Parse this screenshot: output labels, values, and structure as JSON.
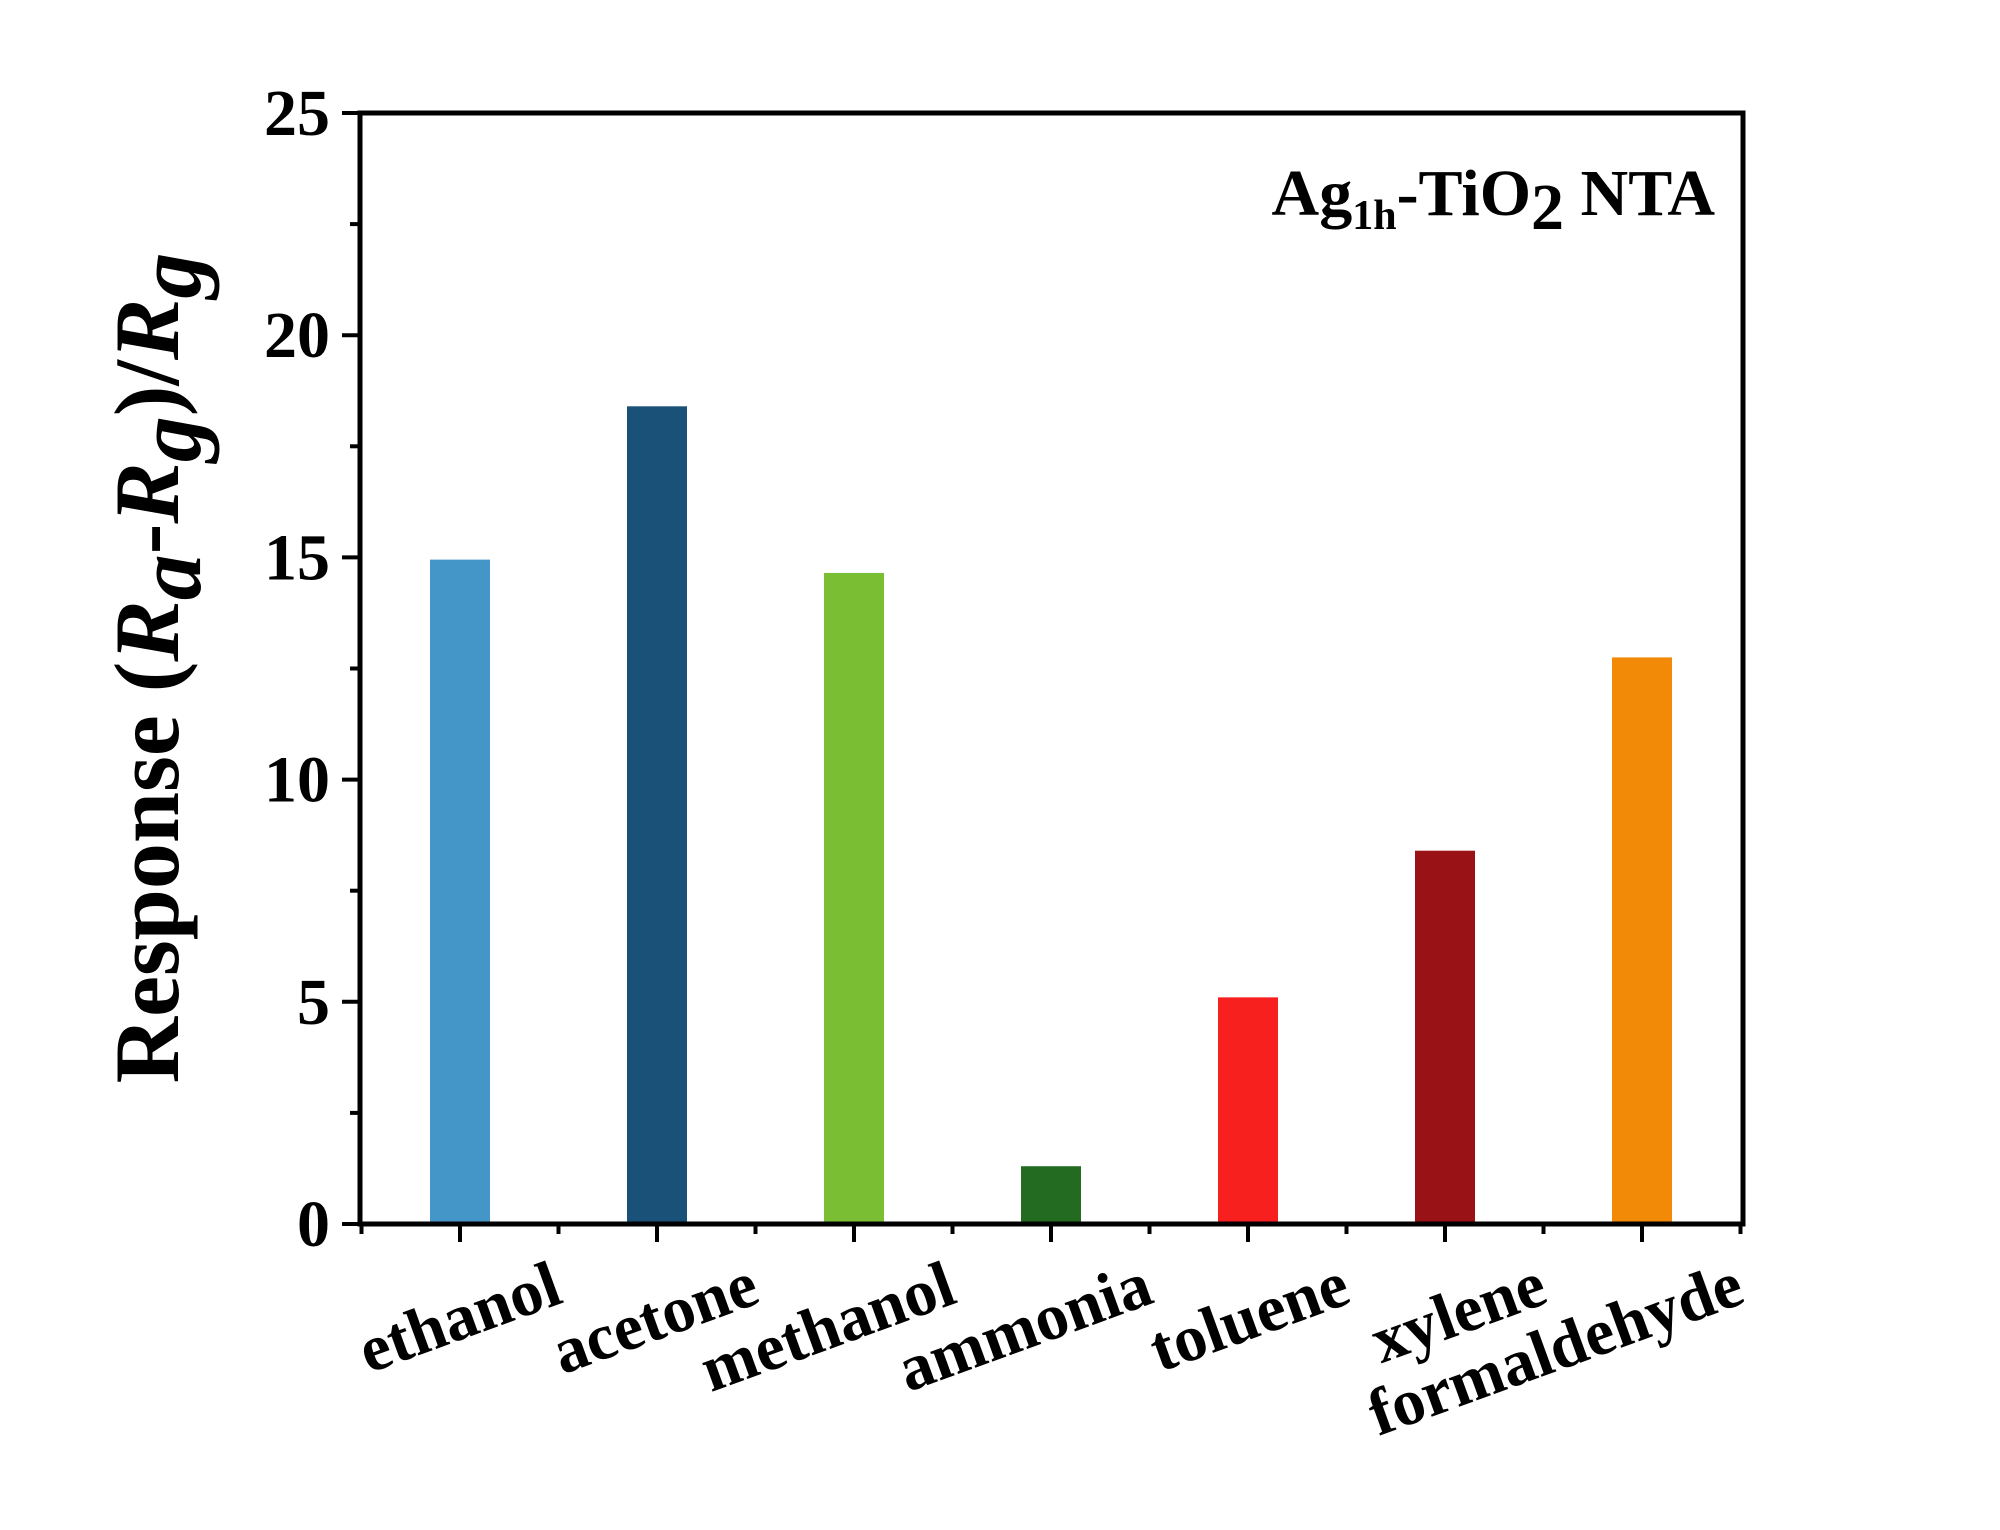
{
  "chart_data": {
    "type": "bar",
    "categories": [
      "ethanol",
      "acetone",
      "methanol",
      "ammonia",
      "toluene",
      "xylene",
      "formaldehyde"
    ],
    "values": [
      14.95,
      18.4,
      14.65,
      1.3,
      5.1,
      8.4,
      12.75
    ],
    "colors": [
      "#4596c8",
      "#1a5179",
      "#7abf33",
      "#226b20",
      "#f81f1f",
      "#981216",
      "#f28a08"
    ],
    "ylim": [
      0,
      25
    ],
    "yticks": [
      "0",
      "5",
      "10",
      "15",
      "20",
      "25"
    ],
    "ylabel": {
      "prefix": "Response (",
      "r1": "R",
      "sub1": "a",
      "dash": "-",
      "r2": "R",
      "sub2": "g",
      "mid": ")/",
      "r3": "R",
      "sub3": "g"
    },
    "annotation": {
      "part1": "Ag",
      "sub1": "1h",
      "part2": "-TiO",
      "sub2": "2",
      "part3": " NTA"
    },
    "xlabel": "",
    "grid": false
  }
}
